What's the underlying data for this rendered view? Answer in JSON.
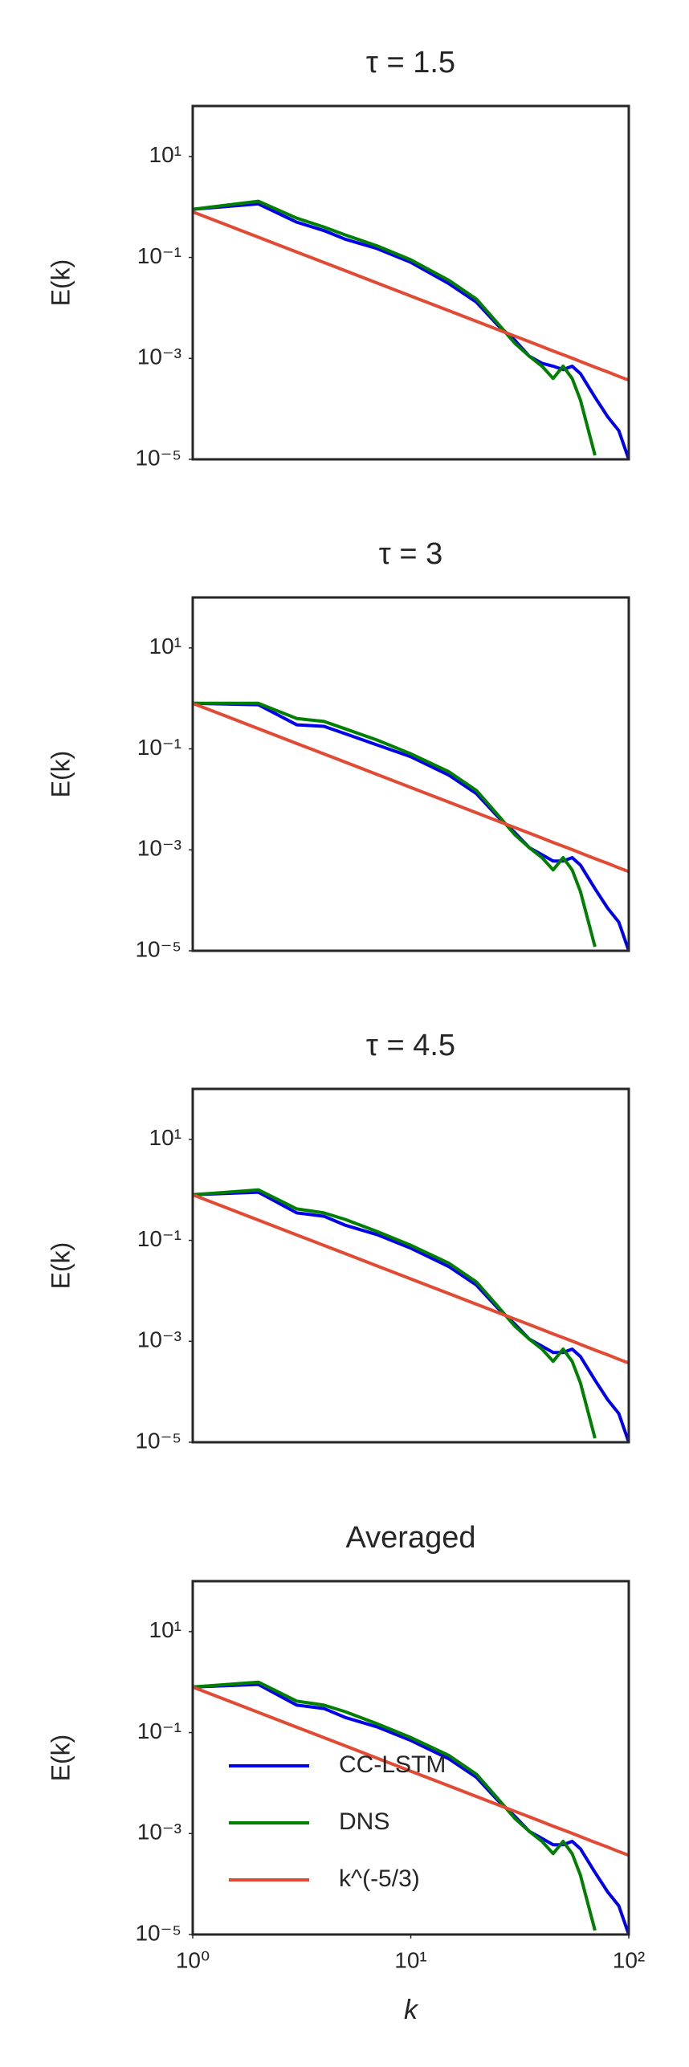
{
  "chart_data": [
    {
      "type": "line",
      "title": "τ = 1.5",
      "ylabel": "E(k)",
      "xscale": "log",
      "yscale": "log",
      "xlim": [
        1,
        100
      ],
      "ylim": [
        1e-05,
        100
      ],
      "yticks": [
        {
          "value": 1e-05,
          "label": "10⁻⁵"
        },
        {
          "value": 0.001,
          "label": "10⁻³"
        },
        {
          "value": 0.1,
          "label": "10⁻¹"
        },
        {
          "value": 10,
          "label": "10¹"
        }
      ],
      "x": [
        1,
        2,
        3,
        4,
        5,
        7,
        10,
        15,
        20,
        25,
        30,
        35,
        40,
        45,
        50,
        55,
        60,
        70,
        80,
        90,
        100
      ],
      "series": [
        {
          "name": "CC-LSTM",
          "color": "#0000ee",
          "values": [
            0.9,
            1.15,
            0.5,
            0.34,
            0.23,
            0.15,
            0.08,
            0.03,
            0.013,
            0.0046,
            0.0023,
            0.0011,
            0.0008,
            0.0007,
            0.0006,
            0.0007,
            0.0005,
            0.00017,
            7e-05,
            3.7e-05,
            1e-05
          ]
        },
        {
          "name": "DNS",
          "color": "#008000",
          "values": [
            0.9,
            1.3,
            0.6,
            0.4,
            0.28,
            0.17,
            0.09,
            0.035,
            0.015,
            0.005,
            0.002,
            0.0011,
            0.0007,
            0.0004,
            0.0007,
            0.0004,
            0.00015,
            1.2e-05,
            null,
            null,
            null
          ]
        },
        {
          "name": "k^(-5/3)",
          "color": "#e24a33",
          "values": [
            0.8,
            0.252,
            0.128,
            0.0794,
            0.0547,
            0.0312,
            0.0172,
            0.00877,
            0.00543,
            0.00374,
            0.00276,
            0.00214,
            0.00171,
            0.0014,
            0.00118,
            0.00101,
            0.00087,
            0.00067,
            0.00054,
            0.00044,
            0.00037
          ]
        }
      ]
    },
    {
      "type": "line",
      "title": "τ = 3",
      "ylabel": "E(k)",
      "xscale": "log",
      "yscale": "log",
      "xlim": [
        1,
        100
      ],
      "ylim": [
        1e-05,
        100
      ],
      "yticks": [
        {
          "value": 1e-05,
          "label": "10⁻⁵"
        },
        {
          "value": 0.001,
          "label": "10⁻³"
        },
        {
          "value": 0.1,
          "label": "10⁻¹"
        },
        {
          "value": 10,
          "label": "10¹"
        }
      ],
      "x": [
        1,
        2,
        3,
        4,
        5,
        7,
        10,
        15,
        20,
        25,
        30,
        35,
        40,
        45,
        50,
        55,
        60,
        70,
        80,
        90,
        100
      ],
      "series": [
        {
          "name": "CC-LSTM",
          "color": "#0000ee",
          "values": [
            0.8,
            0.75,
            0.3,
            0.28,
            0.2,
            0.12,
            0.07,
            0.03,
            0.013,
            0.0046,
            0.0022,
            0.0011,
            0.0008,
            0.0006,
            0.0006,
            0.0007,
            0.0005,
            0.00017,
            7e-05,
            3.7e-05,
            1e-05
          ]
        },
        {
          "name": "DNS",
          "color": "#008000",
          "values": [
            0.8,
            0.8,
            0.4,
            0.35,
            0.25,
            0.15,
            0.08,
            0.035,
            0.015,
            0.005,
            0.002,
            0.0011,
            0.0007,
            0.0004,
            0.0007,
            0.0004,
            0.00015,
            1.2e-05,
            null,
            null,
            null
          ]
        },
        {
          "name": "k^(-5/3)",
          "color": "#e24a33",
          "values": [
            0.8,
            0.252,
            0.128,
            0.0794,
            0.0547,
            0.0312,
            0.0172,
            0.00877,
            0.00543,
            0.00374,
            0.00276,
            0.00214,
            0.00171,
            0.0014,
            0.00118,
            0.00101,
            0.00087,
            0.00067,
            0.00054,
            0.00044,
            0.00037
          ]
        }
      ]
    },
    {
      "type": "line",
      "title": "τ = 4.5",
      "ylabel": "E(k)",
      "xscale": "log",
      "yscale": "log",
      "xlim": [
        1,
        100
      ],
      "ylim": [
        1e-05,
        100
      ],
      "yticks": [
        {
          "value": 1e-05,
          "label": "10⁻⁵"
        },
        {
          "value": 0.001,
          "label": "10⁻³"
        },
        {
          "value": 0.1,
          "label": "10⁻¹"
        },
        {
          "value": 10,
          "label": "10¹"
        }
      ],
      "x": [
        1,
        2,
        3,
        4,
        5,
        7,
        10,
        15,
        20,
        25,
        30,
        35,
        40,
        45,
        50,
        55,
        60,
        70,
        80,
        90,
        100
      ],
      "series": [
        {
          "name": "CC-LSTM",
          "color": "#0000ee",
          "values": [
            0.8,
            0.9,
            0.35,
            0.3,
            0.2,
            0.13,
            0.07,
            0.03,
            0.013,
            0.0046,
            0.0022,
            0.0011,
            0.0008,
            0.0006,
            0.0006,
            0.0007,
            0.0005,
            0.00017,
            7e-05,
            3.7e-05,
            1e-05
          ]
        },
        {
          "name": "DNS",
          "color": "#008000",
          "values": [
            0.8,
            1.0,
            0.42,
            0.35,
            0.26,
            0.15,
            0.08,
            0.035,
            0.015,
            0.005,
            0.002,
            0.0011,
            0.0007,
            0.0004,
            0.0007,
            0.0004,
            0.00015,
            1.2e-05,
            null,
            null,
            null
          ]
        },
        {
          "name": "k^(-5/3)",
          "color": "#e24a33",
          "values": [
            0.8,
            0.252,
            0.128,
            0.0794,
            0.0547,
            0.0312,
            0.0172,
            0.00877,
            0.00543,
            0.00374,
            0.00276,
            0.00214,
            0.00171,
            0.0014,
            0.00118,
            0.00101,
            0.00087,
            0.00067,
            0.00054,
            0.00044,
            0.00037
          ]
        }
      ]
    },
    {
      "type": "line",
      "title": "Averaged",
      "ylabel": "E(k)",
      "xlabel": "k",
      "xscale": "log",
      "yscale": "log",
      "xlim": [
        1,
        100
      ],
      "ylim": [
        1e-05,
        100
      ],
      "xticks": [
        {
          "value": 1,
          "label": "10⁰"
        },
        {
          "value": 10,
          "label": "10¹"
        },
        {
          "value": 100,
          "label": "10²"
        }
      ],
      "yticks": [
        {
          "value": 1e-05,
          "label": "10⁻⁵"
        },
        {
          "value": 0.001,
          "label": "10⁻³"
        },
        {
          "value": 0.1,
          "label": "10⁻¹"
        },
        {
          "value": 10,
          "label": "10¹"
        }
      ],
      "legend": "lower left",
      "x": [
        1,
        2,
        3,
        4,
        5,
        7,
        10,
        15,
        20,
        25,
        30,
        35,
        40,
        45,
        50,
        55,
        60,
        70,
        80,
        90,
        100
      ],
      "series": [
        {
          "name": "CC-LSTM",
          "color": "#0000ee",
          "values": [
            0.8,
            0.9,
            0.35,
            0.3,
            0.2,
            0.13,
            0.07,
            0.03,
            0.013,
            0.0046,
            0.0022,
            0.0011,
            0.0008,
            0.0006,
            0.0006,
            0.0007,
            0.0005,
            0.00017,
            7e-05,
            3.7e-05,
            1e-05
          ]
        },
        {
          "name": "DNS",
          "color": "#008000",
          "values": [
            0.8,
            1.0,
            0.42,
            0.35,
            0.26,
            0.15,
            0.08,
            0.035,
            0.015,
            0.005,
            0.002,
            0.0011,
            0.0007,
            0.0004,
            0.0007,
            0.0004,
            0.00015,
            1.2e-05,
            null,
            null,
            null
          ]
        },
        {
          "name": "k^(-5/3)",
          "color": "#e24a33",
          "values": [
            0.8,
            0.252,
            0.128,
            0.0794,
            0.0547,
            0.0312,
            0.0172,
            0.00877,
            0.00543,
            0.00374,
            0.00276,
            0.00214,
            0.00171,
            0.0014,
            0.00118,
            0.00101,
            0.00087,
            0.00067,
            0.00054,
            0.00044,
            0.00037
          ]
        }
      ]
    }
  ]
}
